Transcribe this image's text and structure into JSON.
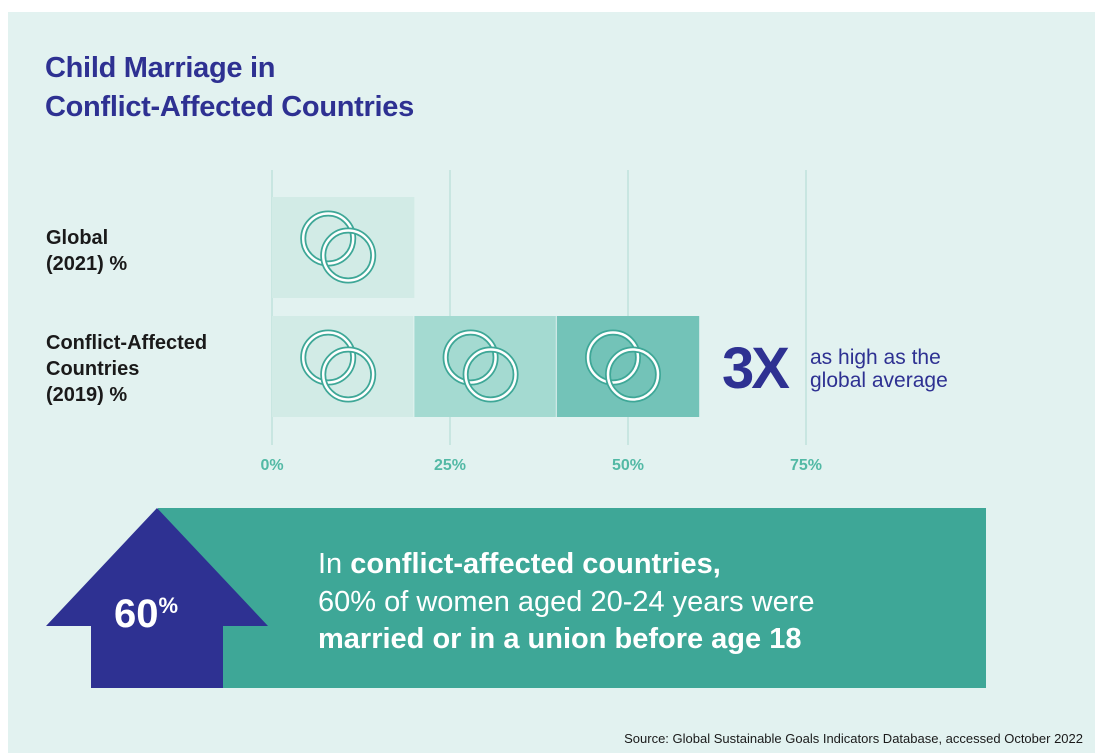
{
  "title": {
    "line1": "Child Marriage in",
    "line2": "Conflict-Affected Countries"
  },
  "chart_data": {
    "type": "bar",
    "orientation": "horizontal",
    "categories": [
      "Global (2021) %",
      "Conflict-Affected Countries (2019) %"
    ],
    "values": [
      20,
      60
    ],
    "xlim": [
      0,
      75
    ],
    "xticks": [
      0,
      25,
      50,
      75
    ],
    "xtick_labels": [
      "0%",
      "25%",
      "50%",
      "75%"
    ],
    "grid": true,
    "colors": {
      "bar_light": "#d2ebe6",
      "bar_mid": "#a4dad1",
      "bar_dark": "#73c3b8",
      "grid": "#c8e6e1",
      "ring": "#3ea797"
    }
  },
  "row_labels": {
    "global": [
      "Global",
      "(2021) %"
    ],
    "conflict": [
      "Conflict-Affected",
      "Countries",
      "(2019) %"
    ]
  },
  "ring_icon": "interlocked-rings-icon",
  "multiplier": {
    "value": "3X",
    "text_line1": "as high as the",
    "text_line2": "global average"
  },
  "banner": {
    "arrow_icon": "up-arrow-icon",
    "arrow_value": "60",
    "arrow_unit": "%",
    "line1_plain": "In ",
    "line1_bold": "conflict-affected countries,",
    "line2": "60% of women aged 20-24 years were",
    "line3_bold": "married or in a union before age 18",
    "colors": {
      "banner": "#3ea797",
      "arrow": "#2e3192"
    }
  },
  "source": "Source: Global Sustainable Goals Indicators Database, accessed October 2022"
}
